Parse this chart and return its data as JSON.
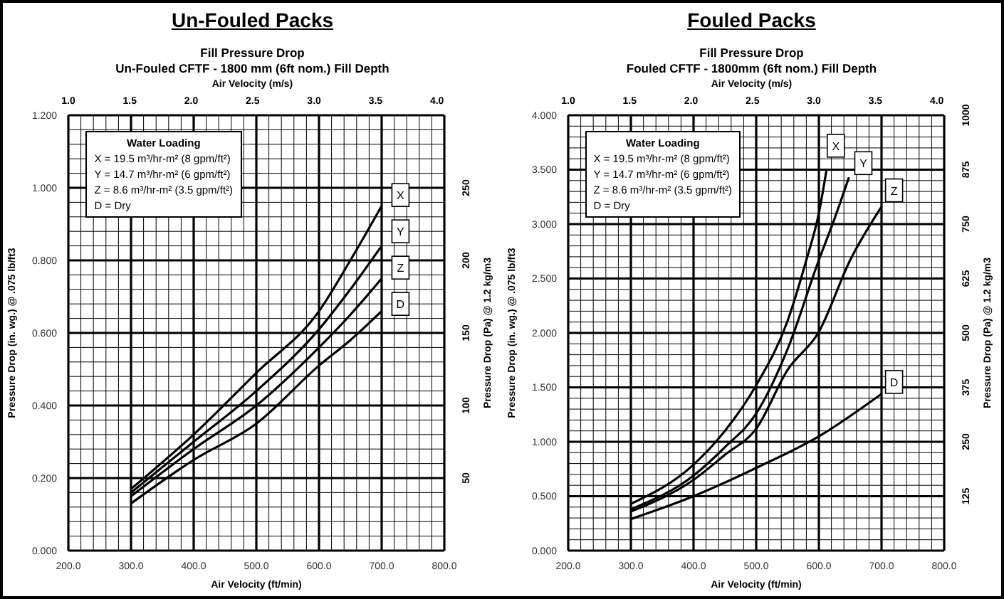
{
  "chart_data": [
    {
      "type": "line",
      "title": "Un-Fouled Packs",
      "subtitle": "Fill Pressure Drop\nUn-Fouled CFTF - 1800 mm (6ft nom.) Fill Depth",
      "xlabel": "Air Velocity (ft/min)",
      "x2label": "Air Velocity (m/s)",
      "ylabel": "Pressure Drop (in. wg.) @ .075 lb/ft3",
      "y2label": "Pressure Drop (Pa) @ 1.2 kg/m3",
      "annotations": [
        "Water Loading",
        "X = 19.5 m³/hr-m² (8 gpm/ft²)",
        "Y = 14.7 m³/hr-m² (6 gpm/ft²)",
        "Z = 8.6 m³/hr-m² (3.5 gpm/ft²)",
        "D = Dry",
        {
          "text": "X",
          "x": 730,
          "y": 0.98
        },
        {
          "text": "Y",
          "x": 730,
          "y": 0.88
        },
        {
          "text": "Z",
          "x": 730,
          "y": 0.78
        },
        {
          "text": "D",
          "x": 730,
          "y": 0.68
        }
      ],
      "series": [
        {
          "color": "#000000",
          "x": [
            300,
            400,
            500,
            600,
            650,
            700
          ],
          "values": [
            0.17,
            0.32,
            0.49,
            0.66,
            0.8,
            0.95
          ]
        },
        {
          "color": "#000000",
          "x": [
            300,
            400,
            500,
            600,
            650,
            700
          ],
          "values": [
            0.16,
            0.3,
            0.44,
            0.61,
            0.72,
            0.84
          ]
        },
        {
          "color": "#000000",
          "x": [
            300,
            400,
            500,
            600,
            650,
            700
          ],
          "values": [
            0.15,
            0.28,
            0.4,
            0.56,
            0.65,
            0.75
          ]
        },
        {
          "color": "#000000",
          "x": [
            300,
            400,
            500,
            600,
            650,
            700
          ],
          "values": [
            0.13,
            0.25,
            0.35,
            0.51,
            0.58,
            0.66
          ]
        }
      ],
      "xlim": [
        200,
        800
      ],
      "xticks": [
        {
          "value": 200,
          "label": "200.0"
        },
        {
          "value": 220,
          "label": null
        },
        {
          "value": 240,
          "label": null
        },
        {
          "value": 260,
          "label": null
        },
        {
          "value": 280,
          "label": null
        },
        {
          "value": 300,
          "label": "300.0"
        },
        {
          "value": 320,
          "label": null
        },
        {
          "value": 340,
          "label": null
        },
        {
          "value": 360,
          "label": null
        },
        {
          "value": 380,
          "label": null
        },
        {
          "value": 400,
          "label": "400.0"
        },
        {
          "value": 420,
          "label": null
        },
        {
          "value": 440,
          "label": null
        },
        {
          "value": 460,
          "label": null
        },
        {
          "value": 480,
          "label": null
        },
        {
          "value": 500,
          "label": "500.0"
        },
        {
          "value": 520,
          "label": null
        },
        {
          "value": 540,
          "label": null
        },
        {
          "value": 560,
          "label": null
        },
        {
          "value": 580,
          "label": null
        },
        {
          "value": 600,
          "label": "600.0"
        },
        {
          "value": 620,
          "label": null
        },
        {
          "value": 640,
          "label": null
        },
        {
          "value": 660,
          "label": null
        },
        {
          "value": 680,
          "label": null
        },
        {
          "value": 700,
          "label": "700.0"
        },
        {
          "value": 720,
          "label": null
        },
        {
          "value": 740,
          "label": null
        },
        {
          "value": 760,
          "label": null
        },
        {
          "value": 780,
          "label": null
        },
        {
          "value": 800,
          "label": "800.0"
        }
      ],
      "ylim": [
        0,
        1.2
      ],
      "yticks": [
        {
          "value": 0,
          "label": "0.000"
        },
        {
          "value": 0.04,
          "label": null
        },
        {
          "value": 0.08,
          "label": null
        },
        {
          "value": 0.12,
          "label": null
        },
        {
          "value": 0.16,
          "label": null
        },
        {
          "value": 0.2,
          "label": "0.200"
        },
        {
          "value": 0.24,
          "label": null
        },
        {
          "value": 0.28,
          "label": null
        },
        {
          "value": 0.32,
          "label": null
        },
        {
          "value": 0.36,
          "label": null
        },
        {
          "value": 0.4,
          "label": "0.400"
        },
        {
          "value": 0.44,
          "label": null
        },
        {
          "value": 0.48,
          "label": null
        },
        {
          "value": 0.52,
          "label": null
        },
        {
          "value": 0.56,
          "label": null
        },
        {
          "value": 0.6,
          "label": "0.600"
        },
        {
          "value": 0.64,
          "label": null
        },
        {
          "value": 0.68,
          "label": null
        },
        {
          "value": 0.72,
          "label": null
        },
        {
          "value": 0.76,
          "label": null
        },
        {
          "value": 0.8,
          "label": "0.800"
        },
        {
          "value": 0.84,
          "label": null
        },
        {
          "value": 0.88,
          "label": null
        },
        {
          "value": 0.92,
          "label": null
        },
        {
          "value": 0.96,
          "label": null
        },
        {
          "value": 1,
          "label": "1.000"
        },
        {
          "value": 1.04,
          "label": null
        },
        {
          "value": 1.08,
          "label": null
        },
        {
          "value": 1.12,
          "label": null
        },
        {
          "value": 1.16,
          "label": null
        },
        {
          "value": 1.2,
          "label": "1.200"
        }
      ],
      "x2lim": [
        1,
        4.06
      ],
      "x2ticks": [
        {
          "value": 1,
          "label": "1.0"
        },
        {
          "value": 1.5,
          "label": "1.5"
        },
        {
          "value": 2,
          "label": "2.0"
        },
        {
          "value": 2.5,
          "label": "2.5"
        },
        {
          "value": 3,
          "label": "3.0"
        },
        {
          "value": 3.5,
          "label": "3.5"
        },
        {
          "value": 4,
          "label": "4.0"
        }
      ],
      "y2lim": [
        0,
        300
      ],
      "y2ticks": [
        50,
        100,
        150,
        200,
        250
      ],
      "grid": true
    },
    {
      "type": "line",
      "title": "Fouled Packs",
      "subtitle": "Fill Pressure Drop\nFouled CFTF - 1800mm (6ft nom.) Fill Depth",
      "xlabel": "Air Velocity (ft/min)",
      "x2label": "Air Velocity (m/s)",
      "ylabel": "Pressure Drop (in. wg.) @ .075 lb/ft3",
      "y2label": "Pressure Drop (Pa) @ 1.2 kg/m3",
      "annotations": [
        "Water Loading",
        "X = 19.5 m³/hr-m² (8 gpm/ft²)",
        "Y = 14.7 m³/hr-m² (6 gpm/ft²)",
        "Z = 8.6 m³/hr-m² (3.5 gpm/ft²)",
        "D = Dry",
        {
          "text": "X",
          "x": 627,
          "y": 3.72
        },
        {
          "text": "Y",
          "x": 671,
          "y": 3.56
        },
        {
          "text": "Z",
          "x": 720,
          "y": 3.31
        },
        {
          "text": "D",
          "x": 720,
          "y": 1.55
        }
      ],
      "series": [
        {
          "color": "#000000",
          "x": [
            300,
            400,
            450,
            500,
            550,
            580,
            600,
            612
          ],
          "values": [
            0.43,
            0.79,
            1.1,
            1.52,
            2.11,
            2.67,
            3.1,
            3.49
          ]
        },
        {
          "color": "#000000",
          "x": [
            300,
            400,
            450,
            500,
            550,
            600,
            625,
            648
          ],
          "values": [
            0.38,
            0.69,
            0.95,
            1.26,
            1.85,
            2.67,
            3.05,
            3.43
          ]
        },
        {
          "color": "#000000",
          "x": [
            300,
            400,
            450,
            500,
            550,
            600,
            650,
            700
          ],
          "values": [
            0.36,
            0.65,
            0.88,
            1.12,
            1.66,
            2.01,
            2.67,
            3.16
          ]
        },
        {
          "color": "#000000",
          "x": [
            300,
            400,
            500,
            600,
            700
          ],
          "values": [
            0.29,
            0.5,
            0.76,
            1.05,
            1.44
          ]
        }
      ],
      "xlim": [
        200,
        800
      ],
      "xticks": [
        {
          "value": 200,
          "label": "200.0"
        },
        {
          "value": 220,
          "label": null
        },
        {
          "value": 240,
          "label": null
        },
        {
          "value": 260,
          "label": null
        },
        {
          "value": 280,
          "label": null
        },
        {
          "value": 300,
          "label": "300.0"
        },
        {
          "value": 320,
          "label": null
        },
        {
          "value": 340,
          "label": null
        },
        {
          "value": 360,
          "label": null
        },
        {
          "value": 380,
          "label": null
        },
        {
          "value": 400,
          "label": "400.0"
        },
        {
          "value": 420,
          "label": null
        },
        {
          "value": 440,
          "label": null
        },
        {
          "value": 460,
          "label": null
        },
        {
          "value": 480,
          "label": null
        },
        {
          "value": 500,
          "label": "500.0"
        },
        {
          "value": 520,
          "label": null
        },
        {
          "value": 540,
          "label": null
        },
        {
          "value": 560,
          "label": null
        },
        {
          "value": 580,
          "label": null
        },
        {
          "value": 600,
          "label": "600.0"
        },
        {
          "value": 620,
          "label": null
        },
        {
          "value": 640,
          "label": null
        },
        {
          "value": 660,
          "label": null
        },
        {
          "value": 680,
          "label": null
        },
        {
          "value": 700,
          "label": "700.0"
        },
        {
          "value": 720,
          "label": null
        },
        {
          "value": 740,
          "label": null
        },
        {
          "value": 760,
          "label": null
        },
        {
          "value": 780,
          "label": null
        },
        {
          "value": 800,
          "label": "800.0"
        }
      ],
      "ylim": [
        0,
        4
      ],
      "yticks": [
        {
          "value": 0,
          "label": "0.000"
        },
        {
          "value": 0.1,
          "label": null
        },
        {
          "value": 0.2,
          "label": null
        },
        {
          "value": 0.3,
          "label": null
        },
        {
          "value": 0.4,
          "label": null
        },
        {
          "value": 0.5,
          "label": "0.500"
        },
        {
          "value": 0.6,
          "label": null
        },
        {
          "value": 0.7,
          "label": null
        },
        {
          "value": 0.8,
          "label": null
        },
        {
          "value": 0.9,
          "label": null
        },
        {
          "value": 1,
          "label": "1.000"
        },
        {
          "value": 1.1,
          "label": null
        },
        {
          "value": 1.2,
          "label": null
        },
        {
          "value": 1.3,
          "label": null
        },
        {
          "value": 1.4,
          "label": null
        },
        {
          "value": 1.5,
          "label": "1.500"
        },
        {
          "value": 1.6,
          "label": null
        },
        {
          "value": 1.7,
          "label": null
        },
        {
          "value": 1.8,
          "label": null
        },
        {
          "value": 1.9,
          "label": null
        },
        {
          "value": 2,
          "label": "2.000"
        },
        {
          "value": 2.1,
          "label": null
        },
        {
          "value": 2.2,
          "label": null
        },
        {
          "value": 2.3,
          "label": null
        },
        {
          "value": 2.4,
          "label": null
        },
        {
          "value": 2.5,
          "label": "2.500"
        },
        {
          "value": 2.6,
          "label": null
        },
        {
          "value": 2.7,
          "label": null
        },
        {
          "value": 2.8,
          "label": null
        },
        {
          "value": 2.9,
          "label": null
        },
        {
          "value": 3,
          "label": "3.000"
        },
        {
          "value": 3.1,
          "label": null
        },
        {
          "value": 3.2,
          "label": null
        },
        {
          "value": 3.3,
          "label": null
        },
        {
          "value": 3.4,
          "label": null
        },
        {
          "value": 3.5,
          "label": "3.500"
        },
        {
          "value": 3.6,
          "label": null
        },
        {
          "value": 3.7,
          "label": null
        },
        {
          "value": 3.8,
          "label": null
        },
        {
          "value": 3.9,
          "label": null
        },
        {
          "value": 4,
          "label": "4.000"
        }
      ],
      "x2lim": [
        1,
        4.06
      ],
      "x2ticks": [
        {
          "value": 1,
          "label": "1.0"
        },
        {
          "value": 1.5,
          "label": "1.5"
        },
        {
          "value": 2,
          "label": "2.0"
        },
        {
          "value": 2.5,
          "label": "2.5"
        },
        {
          "value": 3,
          "label": "3.0"
        },
        {
          "value": 3.5,
          "label": "3.5"
        },
        {
          "value": 4,
          "label": "4.0"
        }
      ],
      "y2lim": [
        0,
        1000
      ],
      "y2ticks": [
        125,
        250,
        375,
        500,
        625,
        750,
        875,
        1000
      ],
      "grid": true
    }
  ]
}
